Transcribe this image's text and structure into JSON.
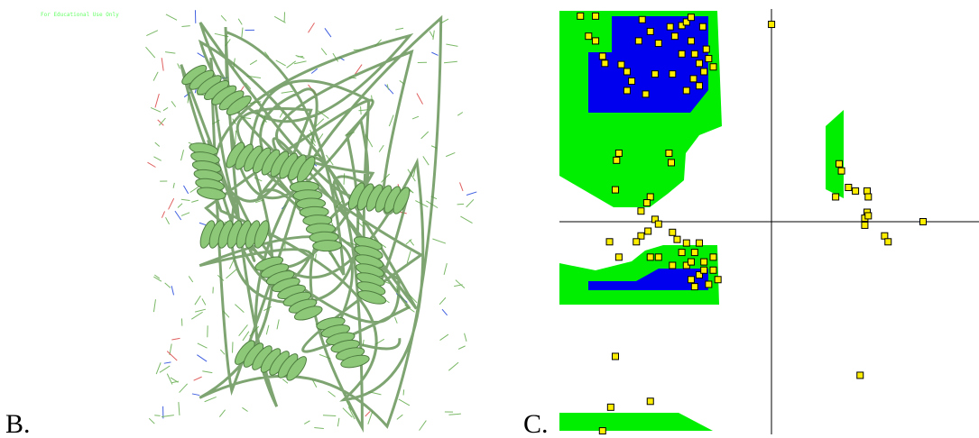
{
  "figure_b": {
    "label": "B.",
    "watermark": "For Educational Use Only"
  },
  "chart_data": {
    "type": "scatter",
    "panel_label": "C.",
    "xlim": [
      -180,
      180
    ],
    "ylim": [
      -180,
      180
    ],
    "color": "#ffee00",
    "x": [
      -162,
      -149,
      -155,
      -149,
      -143,
      -141,
      -127,
      -122,
      -118,
      -109,
      -102,
      -112,
      -95,
      -85,
      -81,
      -75,
      -67,
      -64,
      -60,
      -56,
      -52,
      -48,
      -60,
      -71,
      -83,
      -98,
      -106,
      -122,
      -65,
      -54,
      -71,
      -75,
      -67,
      -57,
      -129,
      -131,
      -86,
      -84,
      -132,
      -102,
      -105,
      -110,
      -98,
      -95,
      -104,
      -110,
      -137,
      -114,
      -83,
      -79,
      -71,
      -64,
      -56,
      -48,
      -60,
      -67,
      -64,
      -52,
      -44,
      -71,
      -83,
      -95,
      -102,
      -129,
      -75,
      -67,
      -56,
      -60,
      -48,
      60,
      62,
      57,
      68,
      74,
      84,
      85,
      84,
      82,
      85,
      82,
      99,
      102,
      132,
      78,
      2,
      -132,
      -102,
      -136,
      -143
    ],
    "y": [
      174,
      174,
      157,
      153,
      140,
      134,
      133,
      127,
      119,
      171,
      161,
      153,
      151,
      165,
      157,
      166,
      153,
      142,
      134,
      127,
      138,
      131,
      115,
      111,
      125,
      125,
      108,
      111,
      121,
      146,
      169,
      142,
      173,
      165,
      58,
      52,
      58,
      50,
      27,
      21,
      16,
      9,
      2,
      -2,
      -8,
      -12,
      -17,
      -17,
      -9,
      -15,
      -18,
      -26,
      -34,
      -41,
      -45,
      -49,
      -55,
      -53,
      -49,
      -37,
      -37,
      -30,
      -30,
      -30,
      -26,
      -34,
      -41,
      -18,
      -30,
      49,
      43,
      21,
      29,
      26,
      26,
      21,
      8,
      3,
      5,
      -3,
      -12,
      -17,
      0,
      -130,
      167,
      -114,
      -152,
      -157,
      -177
    ]
  }
}
